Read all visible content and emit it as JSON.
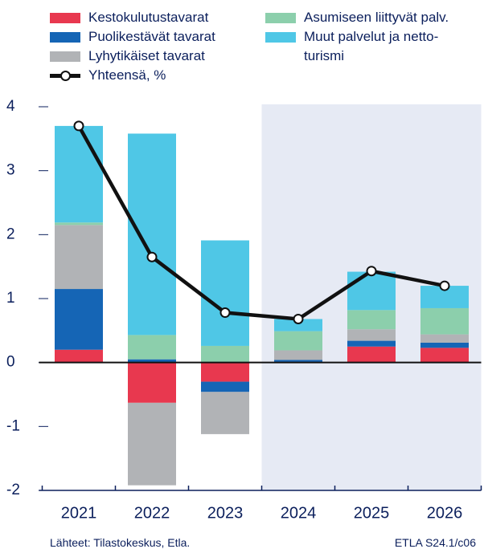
{
  "chart_data": {
    "type": "bar",
    "categories": [
      "2021",
      "2022",
      "2023",
      "2024",
      "2025",
      "2026"
    ],
    "series": [
      {
        "name": "Kestokulutustavarat",
        "color": "#e8384f",
        "values": [
          0.2,
          -0.63,
          -0.3,
          0.01,
          0.25,
          0.23
        ]
      },
      {
        "name": "Puolikestävät tavarat",
        "color": "#1565b5",
        "values": [
          0.95,
          0.05,
          -0.16,
          0.03,
          0.09,
          0.08
        ]
      },
      {
        "name": "Lyhytikäiset tavarat",
        "color": "#b1b3b6",
        "values": [
          1.0,
          -1.29,
          -0.66,
          0.15,
          0.18,
          0.13
        ]
      },
      {
        "name": "Asumiseen liittyvät palv.",
        "color": "#8ccfac",
        "values": [
          0.04,
          0.38,
          0.26,
          0.3,
          0.3,
          0.41
        ]
      },
      {
        "name": "Muut palvelut ja netto-turismi",
        "color": "#4fc7e6",
        "values": [
          1.51,
          3.15,
          1.65,
          0.19,
          0.6,
          0.35
        ]
      }
    ],
    "line": {
      "name": "Yhteensä, %",
      "color": "#111111",
      "values": [
        3.7,
        1.65,
        0.78,
        0.68,
        1.43,
        1.2
      ]
    },
    "ylim": [
      -2,
      4
    ],
    "yticks": [
      -2,
      -1,
      0,
      1,
      2,
      3,
      4
    ],
    "source": "Lähteet: Tilastokeskus, Etla.",
    "code": "ETLA S24.1/c06"
  }
}
